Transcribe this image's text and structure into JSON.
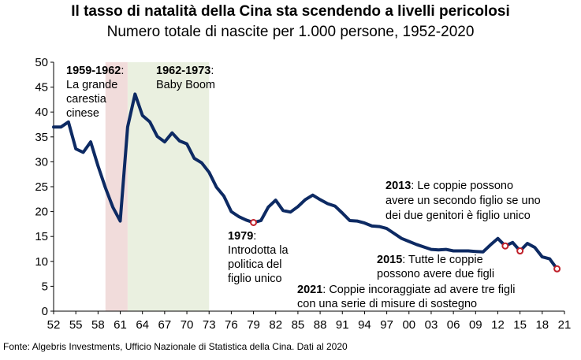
{
  "chart_data": {
    "type": "line",
    "title": "Il tasso di natalità della Cina sta scendendo a livelli pericolosi",
    "subtitle": "Numero totale di nascite per 1.000 persone, 1952-2020",
    "ylim": [
      0,
      50
    ],
    "yticks": [
      0,
      5,
      10,
      15,
      20,
      25,
      30,
      35,
      40,
      45,
      50
    ],
    "xlim": [
      1952,
      2021
    ],
    "xtick_labels": [
      "52",
      "55",
      "58",
      "61",
      "64",
      "67",
      "70",
      "73",
      "76",
      "79",
      "82",
      "85",
      "88",
      "91",
      "94",
      "97",
      "00",
      "03",
      "06",
      "09",
      "12",
      "15",
      "18",
      "21"
    ],
    "grid": false,
    "line_color": "#0d2a63",
    "marker_color": "#c0202a",
    "bands": [
      {
        "start": 1959,
        "end": 1962,
        "color": "#f1dcdb"
      },
      {
        "start": 1962,
        "end": 1973,
        "color": "#eaf0e0"
      }
    ],
    "x": [
      1952,
      1953,
      1954,
      1955,
      1956,
      1957,
      1958,
      1959,
      1960,
      1961,
      1962,
      1963,
      1964,
      1965,
      1966,
      1967,
      1968,
      1969,
      1970,
      1971,
      1972,
      1973,
      1974,
      1975,
      1976,
      1977,
      1978,
      1979,
      1980,
      1981,
      1982,
      1983,
      1984,
      1985,
      1986,
      1987,
      1988,
      1989,
      1990,
      1991,
      1992,
      1993,
      1994,
      1995,
      1996,
      1997,
      1998,
      1999,
      2000,
      2001,
      2002,
      2003,
      2004,
      2005,
      2006,
      2007,
      2008,
      2009,
      2010,
      2011,
      2012,
      2013,
      2014,
      2015,
      2016,
      2017,
      2018,
      2019,
      2020
    ],
    "y": [
      37.0,
      37.0,
      38.0,
      32.6,
      31.9,
      34.0,
      29.2,
      24.8,
      20.9,
      18.1,
      37.0,
      43.6,
      39.3,
      38.0,
      35.1,
      34.0,
      35.8,
      34.2,
      33.6,
      30.7,
      29.8,
      27.9,
      24.9,
      23.1,
      20.0,
      19.0,
      18.3,
      17.8,
      18.2,
      20.9,
      22.3,
      20.2,
      19.9,
      21.0,
      22.4,
      23.3,
      22.4,
      21.6,
      21.1,
      19.7,
      18.2,
      18.1,
      17.7,
      17.1,
      17.0,
      16.6,
      15.6,
      14.6,
      14.0,
      13.4,
      12.9,
      12.4,
      12.3,
      12.4,
      12.1,
      12.1,
      12.1,
      12.0,
      11.9,
      13.3,
      14.6,
      13.1,
      13.8,
      12.1,
      13.6,
      12.8,
      10.9,
      10.5,
      8.5
    ],
    "markers": [
      {
        "x": 1979,
        "y": 17.8
      },
      {
        "x": 2013,
        "y": 13.1
      },
      {
        "x": 2015,
        "y": 12.1
      },
      {
        "x": 2020,
        "y": 8.5
      }
    ],
    "annotations": [
      {
        "bold": "1959-1962",
        "rest": ":",
        "lines": [
          "La grande",
          "carestia",
          "cinese"
        ]
      },
      {
        "bold": "1962-1973",
        "rest": ":",
        "lines": [
          "Baby Boom"
        ]
      },
      {
        "bold": "1979",
        "rest": ":",
        "lines": [
          "Introdotta la",
          "politica del",
          "figlio unico"
        ]
      },
      {
        "bold": "2013",
        "rest": ": Le coppie possono",
        "lines": [
          "avere un secondo figlio se uno",
          "dei due genitori è figlio unico"
        ]
      },
      {
        "bold": "2015",
        "rest": ": Tutte le coppie",
        "lines": [
          "possono avere due figli"
        ]
      },
      {
        "bold": "2021",
        "rest": ": Coppie incoraggiate ad avere tre figli",
        "lines": [
          "con una serie di misure di sostegno"
        ]
      }
    ]
  },
  "source": "Fonte: Algebris Investments, Ufficio Nazionale di Statistica della Cina. Dati al 2020"
}
